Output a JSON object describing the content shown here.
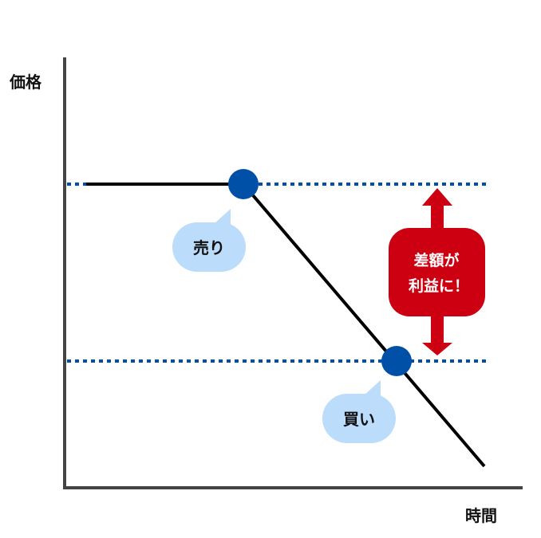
{
  "axes": {
    "y_label": "価格",
    "x_label": "時間"
  },
  "labels": {
    "sell": "売り",
    "buy": "買い"
  },
  "profit_box": {
    "line1": "差額が",
    "line2": "利益に！"
  },
  "colors": {
    "axis": "#444444",
    "price_line": "#000000",
    "point": "#0050a8",
    "bubble": "#bcdcfb",
    "profit": "#cc0010",
    "dotted": "#0050a8"
  }
}
